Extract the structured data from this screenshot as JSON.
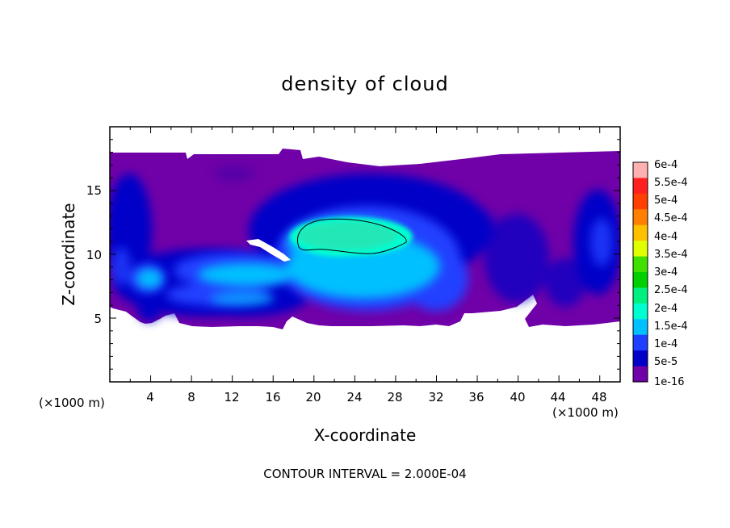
{
  "chart_data": {
    "type": "heatmap",
    "title": "density of cloud",
    "xlabel": "X-coordinate",
    "ylabel": "Z-coordinate",
    "x_unit": "(×1000 m)",
    "y_unit": "(×1000 m)",
    "xlim": [
      0,
      50
    ],
    "ylim": [
      0,
      20
    ],
    "xticks": [
      "4",
      "8",
      "12",
      "16",
      "20",
      "24",
      "28",
      "32",
      "36",
      "40",
      "44",
      "48"
    ],
    "yticks": [
      "5",
      "10",
      "15"
    ],
    "colorbar": {
      "ticks": [
        "6e-4",
        "5.5e-4",
        "5e-4",
        "4.5e-4",
        "4e-4",
        "3.5e-4",
        "3e-4",
        "2.5e-4",
        "2e-4",
        "1.5e-4",
        "1e-4",
        "5e-5",
        "1e-16"
      ],
      "colors": [
        "#ffb0b0",
        "#ff2020",
        "#ff4000",
        "#ff8000",
        "#ffc000",
        "#e0ff00",
        "#40e000",
        "#00d000",
        "#00f080",
        "#00ffd0",
        "#00c0ff",
        "#2040ff",
        "#0000c8",
        "#7000a8"
      ]
    },
    "footer": "CONTOUR INTERVAL = 2.000E-04",
    "grid": false,
    "cloud_extent": {
      "x": [
        0,
        50
      ],
      "z": [
        4.5,
        18
      ]
    },
    "contour_2e-4": {
      "x": [
        18.5,
        29.5
      ],
      "z": [
        10,
        12.8
      ]
    }
  }
}
